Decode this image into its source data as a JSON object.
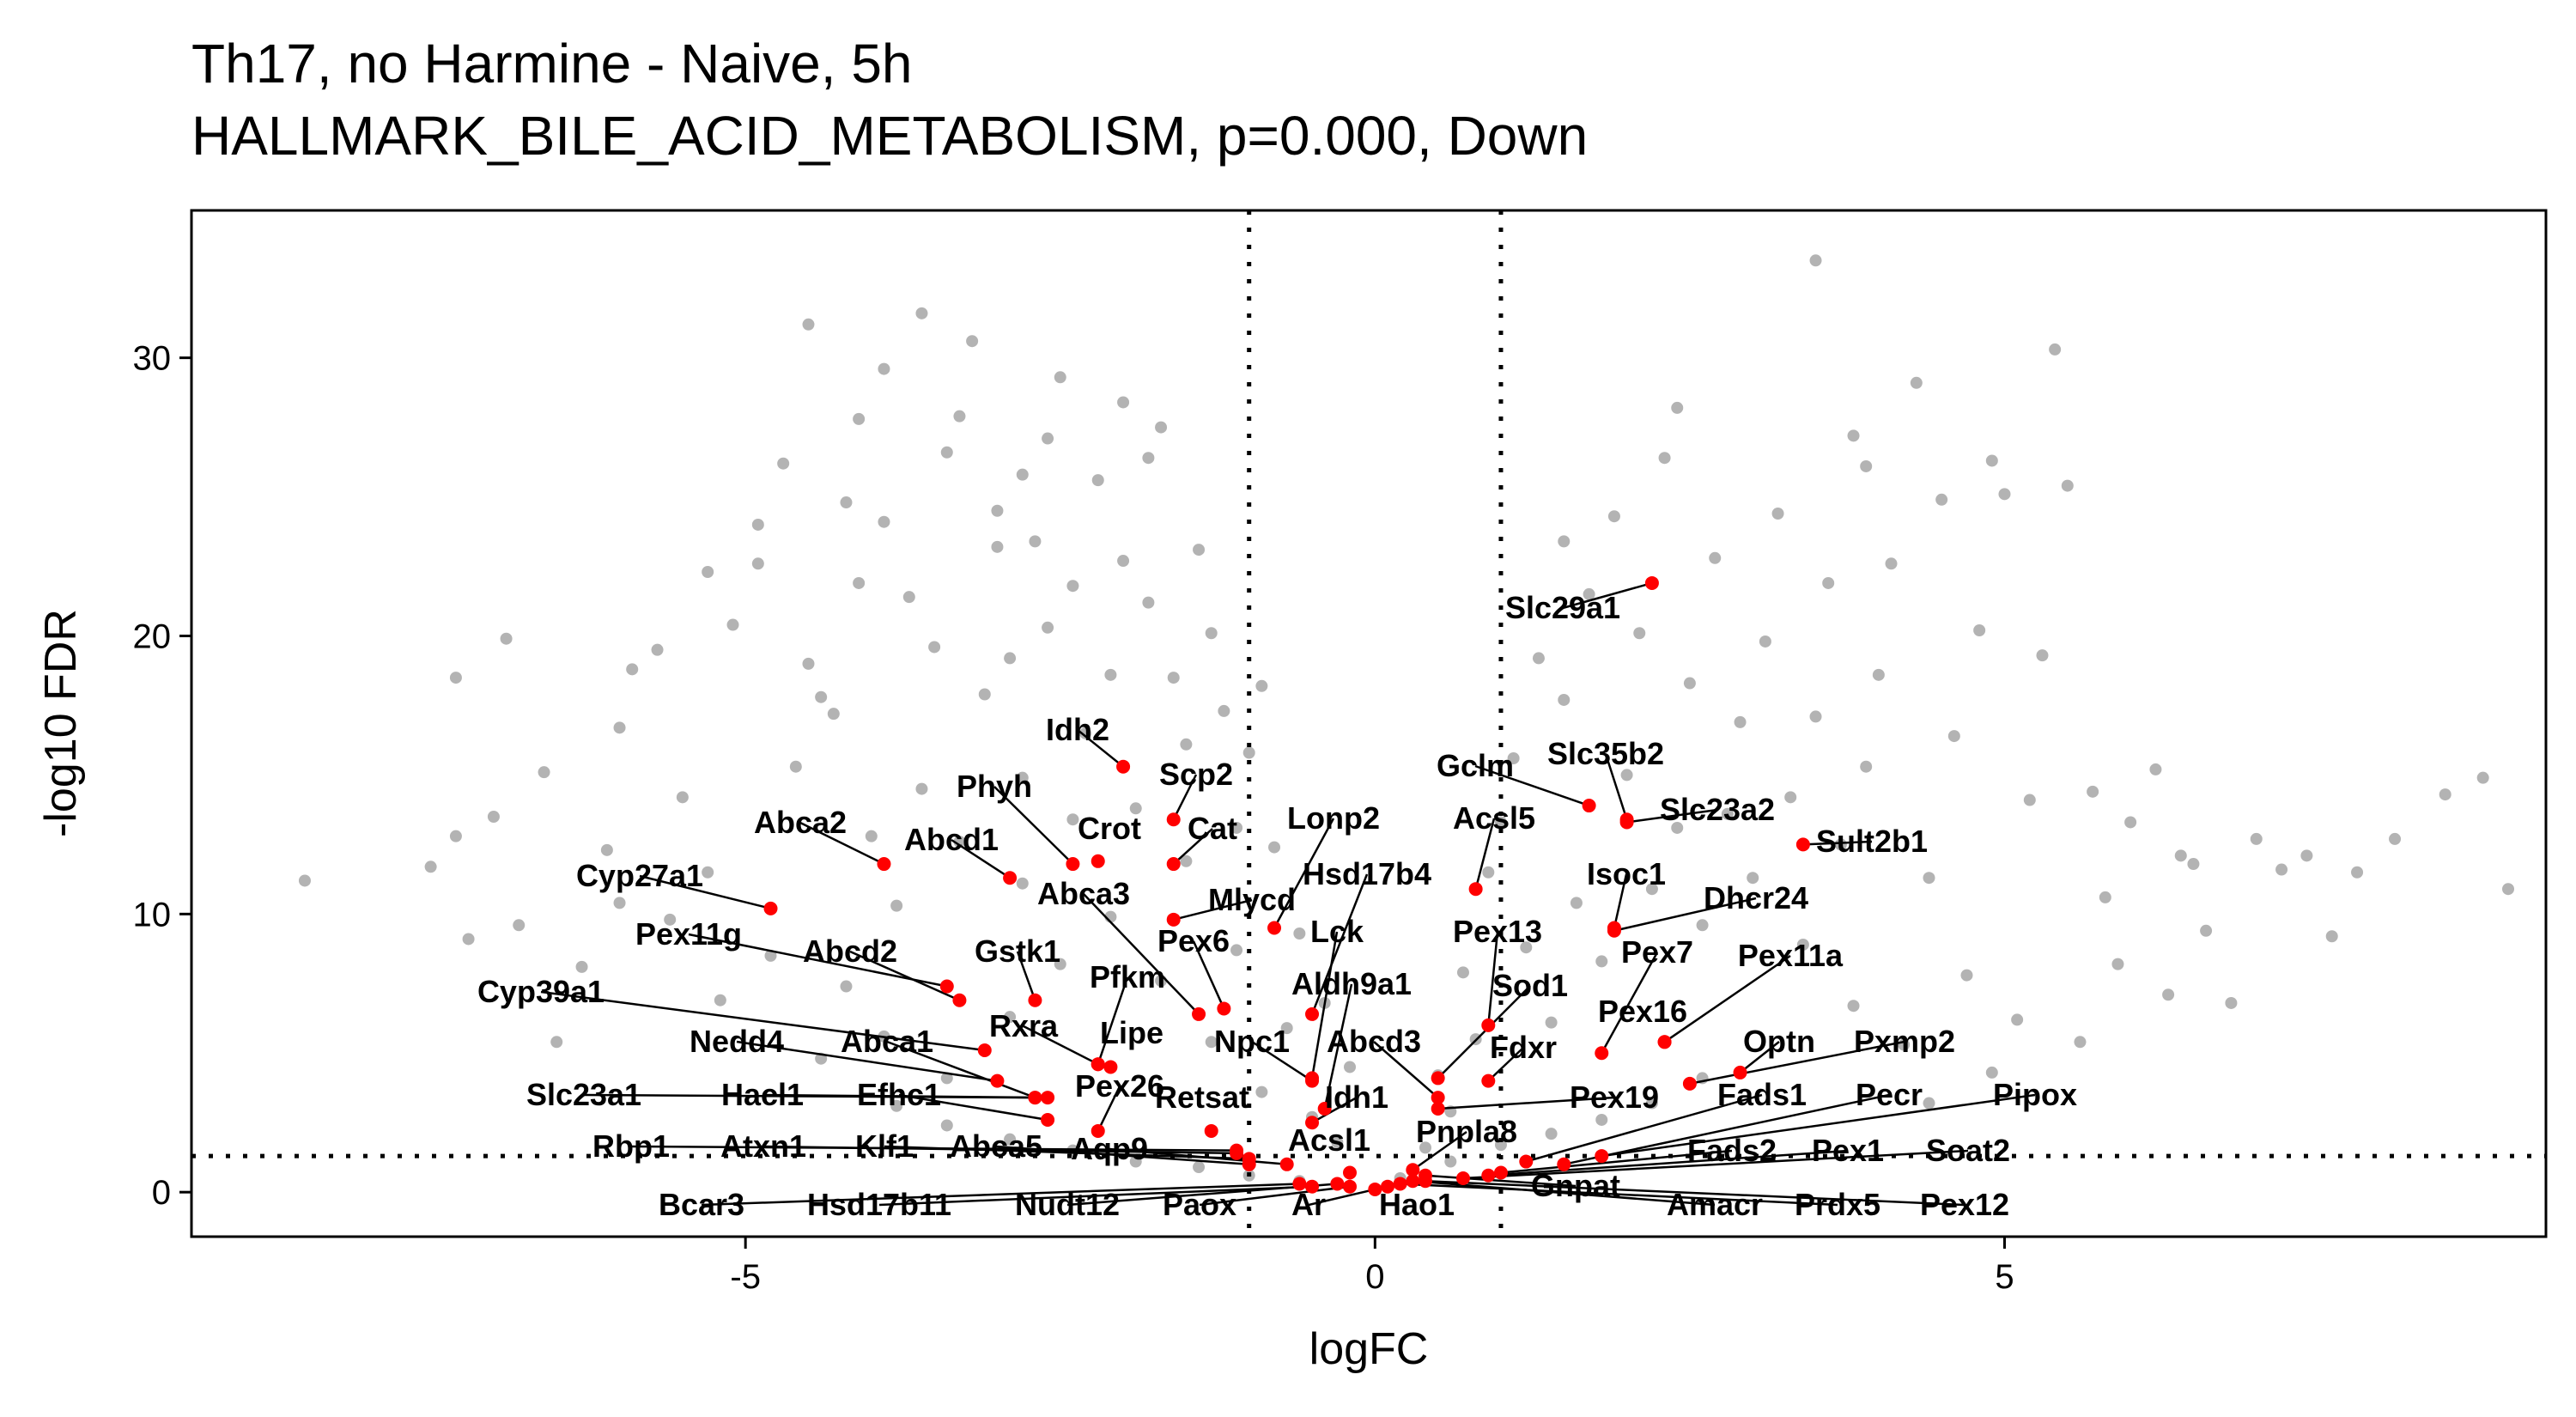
{
  "chart_data": {
    "type": "scatter",
    "title": "Th17, no Harmine - Naive, 5h",
    "subtitle": "HALLMARK_BILE_ACID_METABOLISM, p=0.000, Down",
    "xlabel": "logFC",
    "ylabel": "-log10 FDR",
    "xlim": [
      -9.4,
      9.3
    ],
    "ylim": [
      -1.6,
      35.3
    ],
    "xticks": [
      -5,
      0,
      5
    ],
    "yticks": [
      0,
      10,
      20,
      30
    ],
    "thresholds": {
      "logfc": [
        -1,
        1
      ],
      "neg_log10_fdr": 1.3
    },
    "grid": false,
    "legend": "none",
    "colors": {
      "background_points": "#b3b3b3",
      "highlight_points": "#ff0000",
      "threshold_lines": "#000000"
    },
    "background_series": {
      "name": "",
      "points": [
        [
          -8.5,
          11.2
        ],
        [
          -7.3,
          18.5
        ],
        [
          -7.3,
          12.8
        ],
        [
          -7.2,
          9.1
        ],
        [
          -6.9,
          19.9
        ],
        [
          -6.5,
          5.4
        ],
        [
          -6.3,
          8.1
        ],
        [
          -6.1,
          12.3
        ],
        [
          -6.0,
          16.7
        ],
        [
          -5.7,
          19.5
        ],
        [
          -5.5,
          14.2
        ],
        [
          -5.3,
          11.5
        ],
        [
          -5.1,
          20.4
        ],
        [
          -4.9,
          22.6
        ],
        [
          -4.7,
          26.2
        ],
        [
          -4.5,
          31.2
        ],
        [
          -4.4,
          17.8
        ],
        [
          -4.2,
          24.8
        ],
        [
          -4.1,
          27.8
        ],
        [
          -3.9,
          24.1
        ],
        [
          -3.7,
          21.4
        ],
        [
          -3.6,
          31.6
        ],
        [
          -3.4,
          26.6
        ],
        [
          -3.2,
          30.6
        ],
        [
          -3.0,
          24.5
        ],
        [
          -2.9,
          19.2
        ],
        [
          -2.7,
          23.4
        ],
        [
          -2.6,
          27.1
        ],
        [
          -2.4,
          21.8
        ],
        [
          -2.2,
          25.6
        ],
        [
          -2.0,
          22.7
        ],
        [
          -1.8,
          26.4
        ],
        [
          -1.6,
          18.5
        ],
        [
          -1.4,
          23.1
        ],
        [
          -1.2,
          17.3
        ],
        [
          -1.0,
          15.8
        ],
        [
          -0.8,
          12.4
        ],
        [
          -0.6,
          9.3
        ],
        [
          -0.4,
          6.8
        ],
        [
          -0.2,
          4.5
        ],
        [
          -4.8,
          8.5
        ],
        [
          -4.2,
          7.4
        ],
        [
          -3.8,
          10.3
        ],
        [
          -3.3,
          12.6
        ],
        [
          -2.8,
          14.9
        ],
        [
          -2.3,
          16.5
        ],
        [
          -1.9,
          13.8
        ],
        [
          -1.5,
          11.9
        ],
        [
          -1.1,
          8.7
        ],
        [
          -0.7,
          5.9
        ],
        [
          -3.9,
          5.6
        ],
        [
          -3.4,
          4.1
        ],
        [
          -2.9,
          6.3
        ],
        [
          -2.5,
          8.2
        ],
        [
          -2.1,
          9.9
        ],
        [
          -1.7,
          7.6
        ],
        [
          -1.3,
          5.4
        ],
        [
          -0.9,
          3.6
        ],
        [
          -0.5,
          2.7
        ],
        [
          -0.3,
          1.8
        ],
        [
          -3.1,
          17.9
        ],
        [
          -2.6,
          20.3
        ],
        [
          -2.1,
          18.6
        ],
        [
          -1.8,
          21.2
        ],
        [
          -1.5,
          16.1
        ],
        [
          -2.8,
          11.1
        ],
        [
          -2.4,
          13.4
        ],
        [
          -3.6,
          14.5
        ],
        [
          -4.0,
          12.8
        ],
        [
          -4.6,
          15.3
        ],
        [
          0.5,
          4.2
        ],
        [
          0.7,
          7.9
        ],
        [
          0.9,
          11.5
        ],
        [
          1.1,
          15.6
        ],
        [
          1.3,
          19.2
        ],
        [
          1.5,
          23.4
        ],
        [
          1.7,
          21.5
        ],
        [
          1.9,
          24.3
        ],
        [
          2.1,
          20.1
        ],
        [
          2.3,
          26.4
        ],
        [
          2.5,
          18.3
        ],
        [
          2.7,
          22.8
        ],
        [
          2.9,
          16.9
        ],
        [
          3.1,
          19.8
        ],
        [
          3.3,
          14.2
        ],
        [
          3.5,
          17.1
        ],
        [
          3.7,
          12.5
        ],
        [
          3.9,
          15.3
        ],
        [
          4.1,
          22.6
        ],
        [
          4.4,
          11.3
        ],
        [
          4.6,
          16.4
        ],
        [
          4.8,
          20.2
        ],
        [
          5.0,
          25.1
        ],
        [
          5.4,
          30.3
        ],
        [
          5.5,
          25.4
        ],
        [
          5.8,
          10.6
        ],
        [
          6.2,
          15.2
        ],
        [
          6.5,
          11.8
        ],
        [
          6.8,
          6.8
        ],
        [
          7.0,
          12.7
        ],
        [
          7.4,
          12.1
        ],
        [
          7.8,
          11.5
        ],
        [
          8.1,
          12.7
        ],
        [
          8.5,
          14.3
        ],
        [
          8.8,
          14.9
        ],
        [
          9.0,
          10.9
        ],
        [
          7.6,
          9.2
        ],
        [
          5.2,
          14.1
        ],
        [
          4.9,
          26.3
        ],
        [
          4.3,
          29.1
        ],
        [
          3.5,
          33.5
        ],
        [
          3.8,
          27.2
        ],
        [
          2.0,
          15.0
        ],
        [
          2.4,
          13.1
        ],
        [
          1.6,
          10.4
        ],
        [
          1.2,
          8.8
        ],
        [
          0.8,
          5.5
        ],
        [
          0.6,
          2.9
        ],
        [
          0.4,
          1.6
        ],
        [
          0.3,
          0.8
        ],
        [
          1.4,
          6.1
        ],
        [
          1.8,
          8.3
        ],
        [
          2.2,
          10.9
        ],
        [
          2.6,
          9.6
        ],
        [
          3.0,
          11.3
        ],
        [
          3.4,
          8.9
        ],
        [
          3.8,
          6.7
        ],
        [
          4.2,
          5.3
        ],
        [
          4.7,
          7.8
        ],
        [
          5.1,
          6.2
        ],
        [
          2.8,
          13.6
        ],
        [
          3.2,
          24.4
        ],
        [
          3.6,
          21.9
        ],
        [
          4.0,
          18.6
        ],
        [
          1.0,
          13.3
        ],
        [
          1.5,
          17.7
        ],
        [
          2.4,
          28.2
        ],
        [
          3.9,
          26.1
        ],
        [
          4.5,
          24.9
        ],
        [
          5.3,
          19.3
        ],
        [
          -6.8,
          9.6
        ],
        [
          -6.0,
          10.4
        ],
        [
          -5.6,
          9.8
        ],
        [
          -5.2,
          6.9
        ],
        [
          -4.4,
          4.8
        ],
        [
          -3.8,
          3.1
        ],
        [
          -3.4,
          2.4
        ],
        [
          -2.9,
          1.9
        ],
        [
          -2.4,
          1.5
        ],
        [
          -1.9,
          1.1
        ],
        [
          -1.4,
          0.9
        ],
        [
          -1.0,
          0.6
        ],
        [
          -0.6,
          0.4
        ],
        [
          0.2,
          0.5
        ],
        [
          0.6,
          1.1
        ],
        [
          1.0,
          1.7
        ],
        [
          1.4,
          2.1
        ],
        [
          1.8,
          2.6
        ],
        [
          2.2,
          3.2
        ],
        [
          2.6,
          4.1
        ],
        [
          -2.0,
          28.4
        ],
        [
          -1.7,
          27.5
        ],
        [
          -2.5,
          29.3
        ],
        [
          -3.0,
          23.2
        ],
        [
          -1.3,
          20.1
        ],
        [
          -0.9,
          18.2
        ],
        [
          -1.1,
          13.1
        ],
        [
          -3.5,
          19.6
        ],
        [
          -4.1,
          21.9
        ],
        [
          -4.3,
          17.2
        ],
        [
          5.7,
          14.4
        ],
        [
          6.0,
          13.3
        ],
        [
          6.4,
          12.1
        ],
        [
          6.6,
          9.4
        ],
        [
          7.2,
          11.6
        ],
        [
          5.9,
          8.2
        ],
        [
          6.3,
          7.1
        ],
        [
          5.6,
          5.4
        ],
        [
          4.9,
          4.3
        ],
        [
          4.4,
          3.2
        ],
        [
          -7.5,
          11.7
        ],
        [
          -7.0,
          13.5
        ],
        [
          -6.6,
          15.1
        ],
        [
          -5.9,
          18.8
        ],
        [
          -5.3,
          22.3
        ],
        [
          -4.9,
          24.0
        ],
        [
          -4.5,
          19.0
        ],
        [
          -3.9,
          29.6
        ],
        [
          -3.3,
          27.9
        ],
        [
          -2.8,
          25.8
        ]
      ]
    },
    "highlighted_genes": [
      {
        "gene": "Slc29a1",
        "x": 2.2,
        "y": 21.9
      },
      {
        "gene": "Idh2",
        "x": -2.0,
        "y": 15.3
      },
      {
        "gene": "Gclm",
        "x": 1.7,
        "y": 13.9
      },
      {
        "gene": "Slc35b2",
        "x": 2.0,
        "y": 13.4
      },
      {
        "gene": "Scp2",
        "x": -1.6,
        "y": 13.4
      },
      {
        "gene": "Slc23a2",
        "x": 2.0,
        "y": 13.3
      },
      {
        "gene": "Sult2b1",
        "x": 3.4,
        "y": 12.5
      },
      {
        "gene": "Phyh",
        "x": -2.4,
        "y": 11.8
      },
      {
        "gene": "Crot",
        "x": -2.2,
        "y": 11.9
      },
      {
        "gene": "Cat",
        "x": -1.6,
        "y": 11.8
      },
      {
        "gene": "Abca2",
        "x": -3.9,
        "y": 11.8
      },
      {
        "gene": "Abcd1",
        "x": -2.9,
        "y": 11.3
      },
      {
        "gene": "Lonp2",
        "x": -0.8,
        "y": 9.5
      },
      {
        "gene": "Acsl5",
        "x": 0.8,
        "y": 10.9
      },
      {
        "gene": "Hsd17b4",
        "x": -0.5,
        "y": 6.4
      },
      {
        "gene": "Cyp27a1",
        "x": -4.8,
        "y": 10.2
      },
      {
        "gene": "Isoc1",
        "x": 1.9,
        "y": 9.5
      },
      {
        "gene": "Dhcr24",
        "x": 1.9,
        "y": 9.4
      },
      {
        "gene": "Abca3",
        "x": -1.4,
        "y": 6.4
      },
      {
        "gene": "Mlycd",
        "x": -1.6,
        "y": 9.8
      },
      {
        "gene": "Pex6",
        "x": -1.2,
        "y": 6.6
      },
      {
        "gene": "Lck",
        "x": -0.5,
        "y": 4.1
      },
      {
        "gene": "Pex13",
        "x": 0.9,
        "y": 6.0
      },
      {
        "gene": "Pex11g",
        "x": -3.4,
        "y": 7.4
      },
      {
        "gene": "Abcd2",
        "x": -3.3,
        "y": 6.9
      },
      {
        "gene": "Gstk1",
        "x": -2.7,
        "y": 6.9
      },
      {
        "gene": "Pex7",
        "x": 1.8,
        "y": 5.0
      },
      {
        "gene": "Pex11a",
        "x": 2.3,
        "y": 5.4
      },
      {
        "gene": "Cyp39a1",
        "x": -3.1,
        "y": 5.1
      },
      {
        "gene": "Pfkm",
        "x": -2.2,
        "y": 4.6
      },
      {
        "gene": "Aldh9a1",
        "x": -0.4,
        "y": 3.0
      },
      {
        "gene": "Sod1",
        "x": 0.5,
        "y": 4.1
      },
      {
        "gene": "Pex16",
        "x": 2.3,
        "y": 5.4
      },
      {
        "gene": "Nedd4",
        "x": -3.0,
        "y": 4.0
      },
      {
        "gene": "Abca1",
        "x": -2.7,
        "y": 3.4
      },
      {
        "gene": "Rxra",
        "x": -2.2,
        "y": 4.6
      },
      {
        "gene": "Lipe",
        "x": -2.1,
        "y": 4.5
      },
      {
        "gene": "Npc1",
        "x": -0.5,
        "y": 4.0
      },
      {
        "gene": "Abcd3",
        "x": 0.5,
        "y": 3.4
      },
      {
        "gene": "Fdxr",
        "x": 0.9,
        "y": 4.0
      },
      {
        "gene": "Optn",
        "x": 2.9,
        "y": 4.3
      },
      {
        "gene": "Pxmp2",
        "x": 2.5,
        "y": 3.9
      },
      {
        "gene": "Pex26",
        "x": -2.2,
        "y": 2.2
      },
      {
        "gene": "Slc23a1",
        "x": -2.7,
        "y": 3.4
      },
      {
        "gene": "Hacl1",
        "x": -2.6,
        "y": 3.4
      },
      {
        "gene": "Efhc1",
        "x": -2.6,
        "y": 2.6
      },
      {
        "gene": "Retsat",
        "x": -1.3,
        "y": 2.2
      },
      {
        "gene": "Idh1",
        "x": -0.5,
        "y": 2.5
      },
      {
        "gene": "Pex19",
        "x": 0.5,
        "y": 3.0
      },
      {
        "gene": "Fads1",
        "x": 1.2,
        "y": 1.1
      },
      {
        "gene": "Pecr",
        "x": 1.5,
        "y": 1.0
      },
      {
        "gene": "Pipox",
        "x": 1.8,
        "y": 1.3
      },
      {
        "gene": "Rbp1",
        "x": -1.1,
        "y": 1.5
      },
      {
        "gene": "Atxn1",
        "x": -1.1,
        "y": 1.4
      },
      {
        "gene": "Klf1",
        "x": -1.0,
        "y": 1.2
      },
      {
        "gene": "Abca5",
        "x": -1.0,
        "y": 1.0
      },
      {
        "gene": "Aqp9",
        "x": -0.7,
        "y": 1.0
      },
      {
        "gene": "Acsl1",
        "x": -0.2,
        "y": 0.7
      },
      {
        "gene": "Pnpla8",
        "x": 0.3,
        "y": 0.8
      },
      {
        "gene": "Fads2",
        "x": 1.0,
        "y": 0.7
      },
      {
        "gene": "Pex1",
        "x": 0.9,
        "y": 0.6
      },
      {
        "gene": "Soat2",
        "x": 0.7,
        "y": 0.5
      },
      {
        "gene": "Bcar3",
        "x": -0.6,
        "y": 0.3
      },
      {
        "gene": "Hsd17b11",
        "x": -0.5,
        "y": 0.2
      },
      {
        "gene": "Nudt12",
        "x": -0.3,
        "y": 0.3
      },
      {
        "gene": "Paox",
        "x": -0.2,
        "y": 0.2
      },
      {
        "gene": "Ar",
        "x": 0.0,
        "y": 0.1
      },
      {
        "gene": "Hao1",
        "x": 0.1,
        "y": 0.2
      },
      {
        "gene": "Gnpat",
        "x": 0.4,
        "y": 0.6
      },
      {
        "gene": "Amacr",
        "x": 0.3,
        "y": 0.4
      },
      {
        "gene": "Prdx5",
        "x": 0.2,
        "y": 0.3
      },
      {
        "gene": "Pex12",
        "x": 0.4,
        "y": 0.4
      }
    ]
  }
}
